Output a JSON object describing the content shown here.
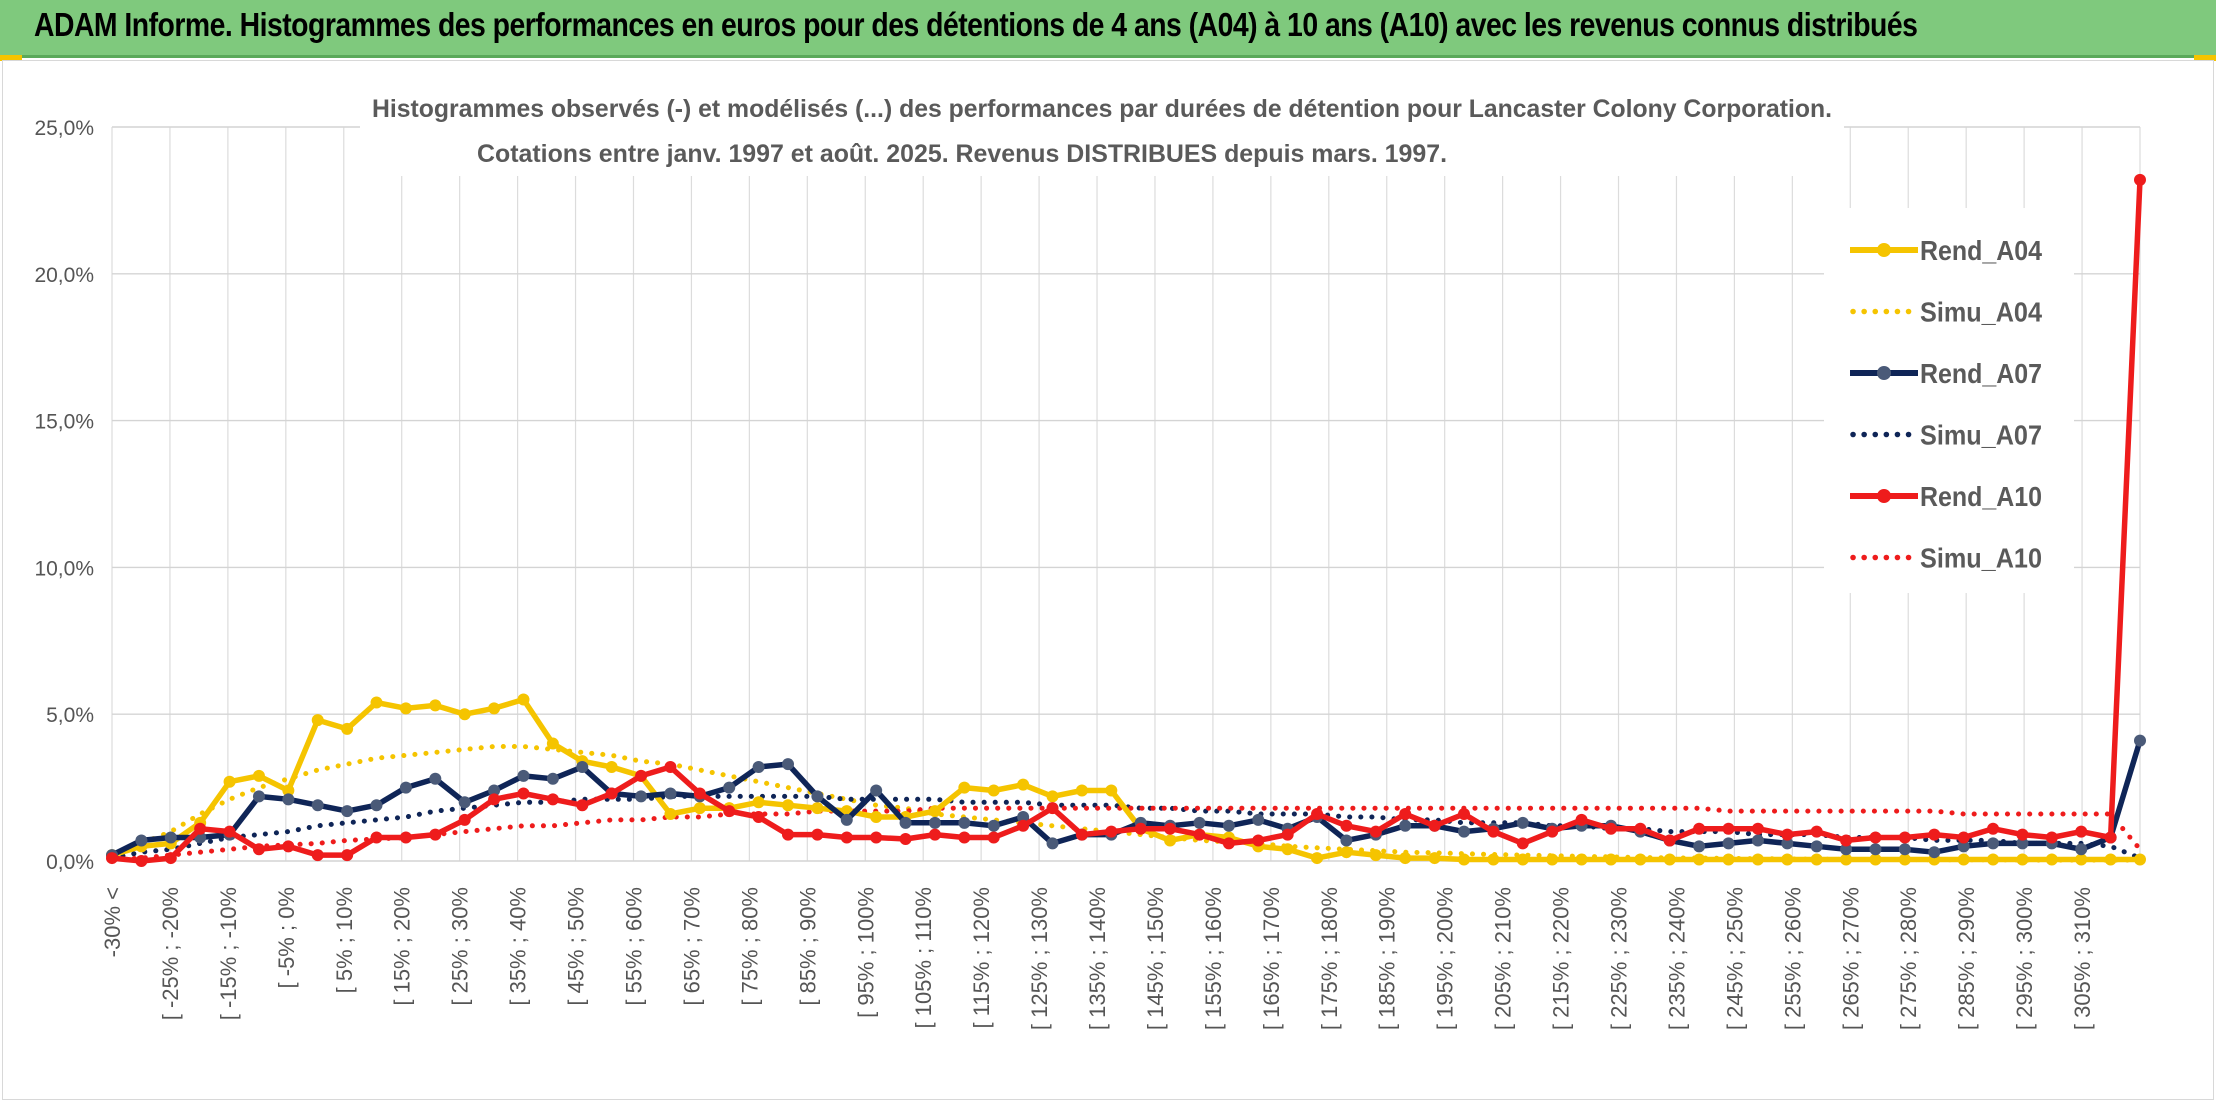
{
  "banner": {
    "title": "ADAM Informe. Histogrammes des performances en euros pour des détentions de 4 ans (A04) à 10 ans (A10) avec les revenus connus distribués"
  },
  "chart_data": {
    "type": "line",
    "title_line1": "Histogrammes observés (-) et modélisés (...) des performances par durées de détention pour Lancaster Colony Corporation.",
    "title_line2": "Cotations entre janv. 1997 et août. 2025. Revenus DISTRIBUES depuis mars. 1997.",
    "ylim": [
      0,
      25
    ],
    "yticks": [
      "0,0%",
      "5,0%",
      "10,0%",
      "15,0%",
      "20,0%",
      "25,0%"
    ],
    "grid": true,
    "legend_position": "right",
    "x_labels": [
      "-30% <",
      "[ -25% ; -20%",
      "[ -15% ; -10%",
      "[ -5% ; 0%",
      "[ 5% ; 10%",
      "[ 15% ; 20%",
      "[ 25% ; 30%",
      "[ 35% ; 40%",
      "[ 45% ; 50%",
      "[ 55% ; 60%",
      "[ 65% ; 70%",
      "[ 75% ; 80%",
      "[ 85% ; 90%",
      "[ 95% ; 100%",
      "[ 105% ; 110%",
      "[ 115% ; 120%",
      "[ 125% ; 130%",
      "[ 135% ; 140%",
      "[ 145% ; 150%",
      "[ 155% ; 160%",
      "[ 165% ; 170%",
      "[ 175% ; 180%",
      "[ 185% ; 190%",
      "[ 195% ; 200%",
      "[ 205% ; 210%",
      "[ 215% ; 220%",
      "[ 225% ; 230%",
      "[ 235% ; 240%",
      "[ 245% ; 250%",
      "[ 255% ; 260%",
      "[ 265% ; 270%",
      "[ 275% ; 280%",
      "[ 285% ; 290%",
      "[ 295% ; 300%",
      "[ 305% ; 310%"
    ],
    "series": [
      {
        "name": "Rend_A04",
        "color": "#f5c400",
        "style": "solid",
        "values": [
          0.2,
          0.5,
          0.6,
          1.3,
          2.7,
          2.9,
          2.4,
          4.8,
          4.5,
          5.4,
          5.2,
          5.3,
          5.0,
          5.2,
          5.5,
          4.0,
          3.4,
          3.2,
          2.9,
          1.6,
          1.8,
          1.8,
          2.0,
          1.9,
          1.8,
          1.7,
          1.5,
          1.5,
          1.7,
          2.5,
          2.4,
          2.6,
          2.2,
          2.4,
          2.4,
          1.1,
          0.7,
          0.9,
          0.8,
          0.5,
          0.4,
          0.1,
          0.3,
          0.2,
          0.1,
          0.1,
          0.05,
          0.05,
          0.05,
          0.05,
          0.05,
          0.05,
          0.05,
          0.05,
          0.05,
          0.05,
          0.05,
          0.05,
          0.05,
          0.05,
          0.05,
          0.05,
          0.05,
          0.05,
          0.05,
          0.05,
          0.05,
          0.05,
          0.05,
          0.05
        ]
      },
      {
        "name": "Simu_A04",
        "color": "#f5c400",
        "style": "dotted",
        "values": [
          0.2,
          0.6,
          1.0,
          1.6,
          2.1,
          2.5,
          2.8,
          3.1,
          3.3,
          3.5,
          3.6,
          3.7,
          3.8,
          3.9,
          3.9,
          3.8,
          3.7,
          3.6,
          3.4,
          3.3,
          3.1,
          2.9,
          2.7,
          2.5,
          2.3,
          2.1,
          1.9,
          1.8,
          1.6,
          1.5,
          1.4,
          1.3,
          1.2,
          1.1,
          1.0,
          0.9,
          0.8,
          0.7,
          0.65,
          0.6,
          0.5,
          0.45,
          0.4,
          0.35,
          0.3,
          0.28,
          0.25,
          0.22,
          0.2,
          0.18,
          0.16,
          0.14,
          0.12,
          0.11,
          0.1,
          0.09,
          0.08,
          0.07,
          0.06,
          0.05,
          0.05,
          0.05,
          0.04,
          0.04,
          0.04,
          0.03,
          0.03,
          0.03,
          0.03,
          0.03
        ]
      },
      {
        "name": "Rend_A07",
        "color": "#0f2557",
        "style": "solid",
        "values": [
          0.2,
          0.7,
          0.8,
          0.8,
          0.9,
          2.2,
          2.1,
          1.9,
          1.7,
          1.9,
          2.5,
          2.8,
          2.0,
          2.4,
          2.9,
          2.8,
          3.2,
          2.3,
          2.2,
          2.3,
          2.2,
          2.5,
          3.2,
          3.3,
          2.2,
          1.4,
          2.4,
          1.3,
          1.3,
          1.3,
          1.2,
          1.5,
          0.6,
          0.9,
          0.9,
          1.3,
          1.2,
          1.3,
          1.2,
          1.4,
          1.1,
          1.5,
          0.7,
          0.9,
          1.2,
          1.2,
          1.0,
          1.1,
          1.3,
          1.1,
          1.2,
          1.2,
          1.0,
          0.7,
          0.5,
          0.6,
          0.7,
          0.6,
          0.5,
          0.4,
          0.4,
          0.4,
          0.3,
          0.5,
          0.6,
          0.6,
          0.6,
          0.4,
          0.8,
          4.1
        ]
      },
      {
        "name": "Simu_A07",
        "color": "#0f2557",
        "style": "dotted",
        "values": [
          0.1,
          0.3,
          0.4,
          0.6,
          0.8,
          0.9,
          1.0,
          1.2,
          1.3,
          1.4,
          1.5,
          1.7,
          1.8,
          1.9,
          2.0,
          2.0,
          2.1,
          2.1,
          2.1,
          2.2,
          2.2,
          2.2,
          2.2,
          2.2,
          2.2,
          2.1,
          2.1,
          2.1,
          2.1,
          2.0,
          2.0,
          2.0,
          1.9,
          1.9,
          1.9,
          1.8,
          1.8,
          1.7,
          1.7,
          1.6,
          1.6,
          1.6,
          1.5,
          1.5,
          1.4,
          1.4,
          1.3,
          1.3,
          1.3,
          1.2,
          1.2,
          1.1,
          1.1,
          1.0,
          1.0,
          1.0,
          0.9,
          0.9,
          0.9,
          0.8,
          0.8,
          0.8,
          0.7,
          0.7,
          0.7,
          0.6,
          0.6,
          0.6,
          0.5,
          0.1
        ]
      },
      {
        "name": "Rend_A10",
        "color": "#ee1c1c",
        "style": "solid",
        "values": [
          0.1,
          0.0,
          0.1,
          1.1,
          1.0,
          0.4,
          0.5,
          0.2,
          0.2,
          0.8,
          0.8,
          0.9,
          1.4,
          2.1,
          2.3,
          2.1,
          1.9,
          2.3,
          2.9,
          3.2,
          2.3,
          1.7,
          1.5,
          0.9,
          0.9,
          0.8,
          0.8,
          0.75,
          0.9,
          0.8,
          0.8,
          1.2,
          1.8,
          0.9,
          1.0,
          1.1,
          1.1,
          0.9,
          0.6,
          0.7,
          0.9,
          1.6,
          1.2,
          1.0,
          1.6,
          1.2,
          1.6,
          1.0,
          0.6,
          1.0,
          1.4,
          1.1,
          1.1,
          0.7,
          1.1,
          1.1,
          1.1,
          0.9,
          1.0,
          0.7,
          0.8,
          0.8,
          0.9,
          0.8,
          1.1,
          0.9,
          0.8,
          1.0,
          0.8,
          23.2
        ]
      },
      {
        "name": "Simu_A10",
        "color": "#ee1c1c",
        "style": "dotted",
        "values": [
          0.05,
          0.1,
          0.2,
          0.3,
          0.4,
          0.5,
          0.55,
          0.6,
          0.7,
          0.75,
          0.8,
          0.9,
          1.0,
          1.1,
          1.2,
          1.2,
          1.3,
          1.4,
          1.4,
          1.5,
          1.5,
          1.6,
          1.6,
          1.6,
          1.7,
          1.7,
          1.7,
          1.7,
          1.8,
          1.8,
          1.8,
          1.8,
          1.8,
          1.8,
          1.8,
          1.8,
          1.8,
          1.8,
          1.8,
          1.8,
          1.8,
          1.8,
          1.8,
          1.8,
          1.8,
          1.8,
          1.8,
          1.8,
          1.8,
          1.8,
          1.8,
          1.8,
          1.8,
          1.8,
          1.8,
          1.7,
          1.7,
          1.7,
          1.7,
          1.7,
          1.7,
          1.7,
          1.7,
          1.6,
          1.6,
          1.6,
          1.6,
          1.6,
          1.6,
          0.4
        ]
      }
    ]
  }
}
